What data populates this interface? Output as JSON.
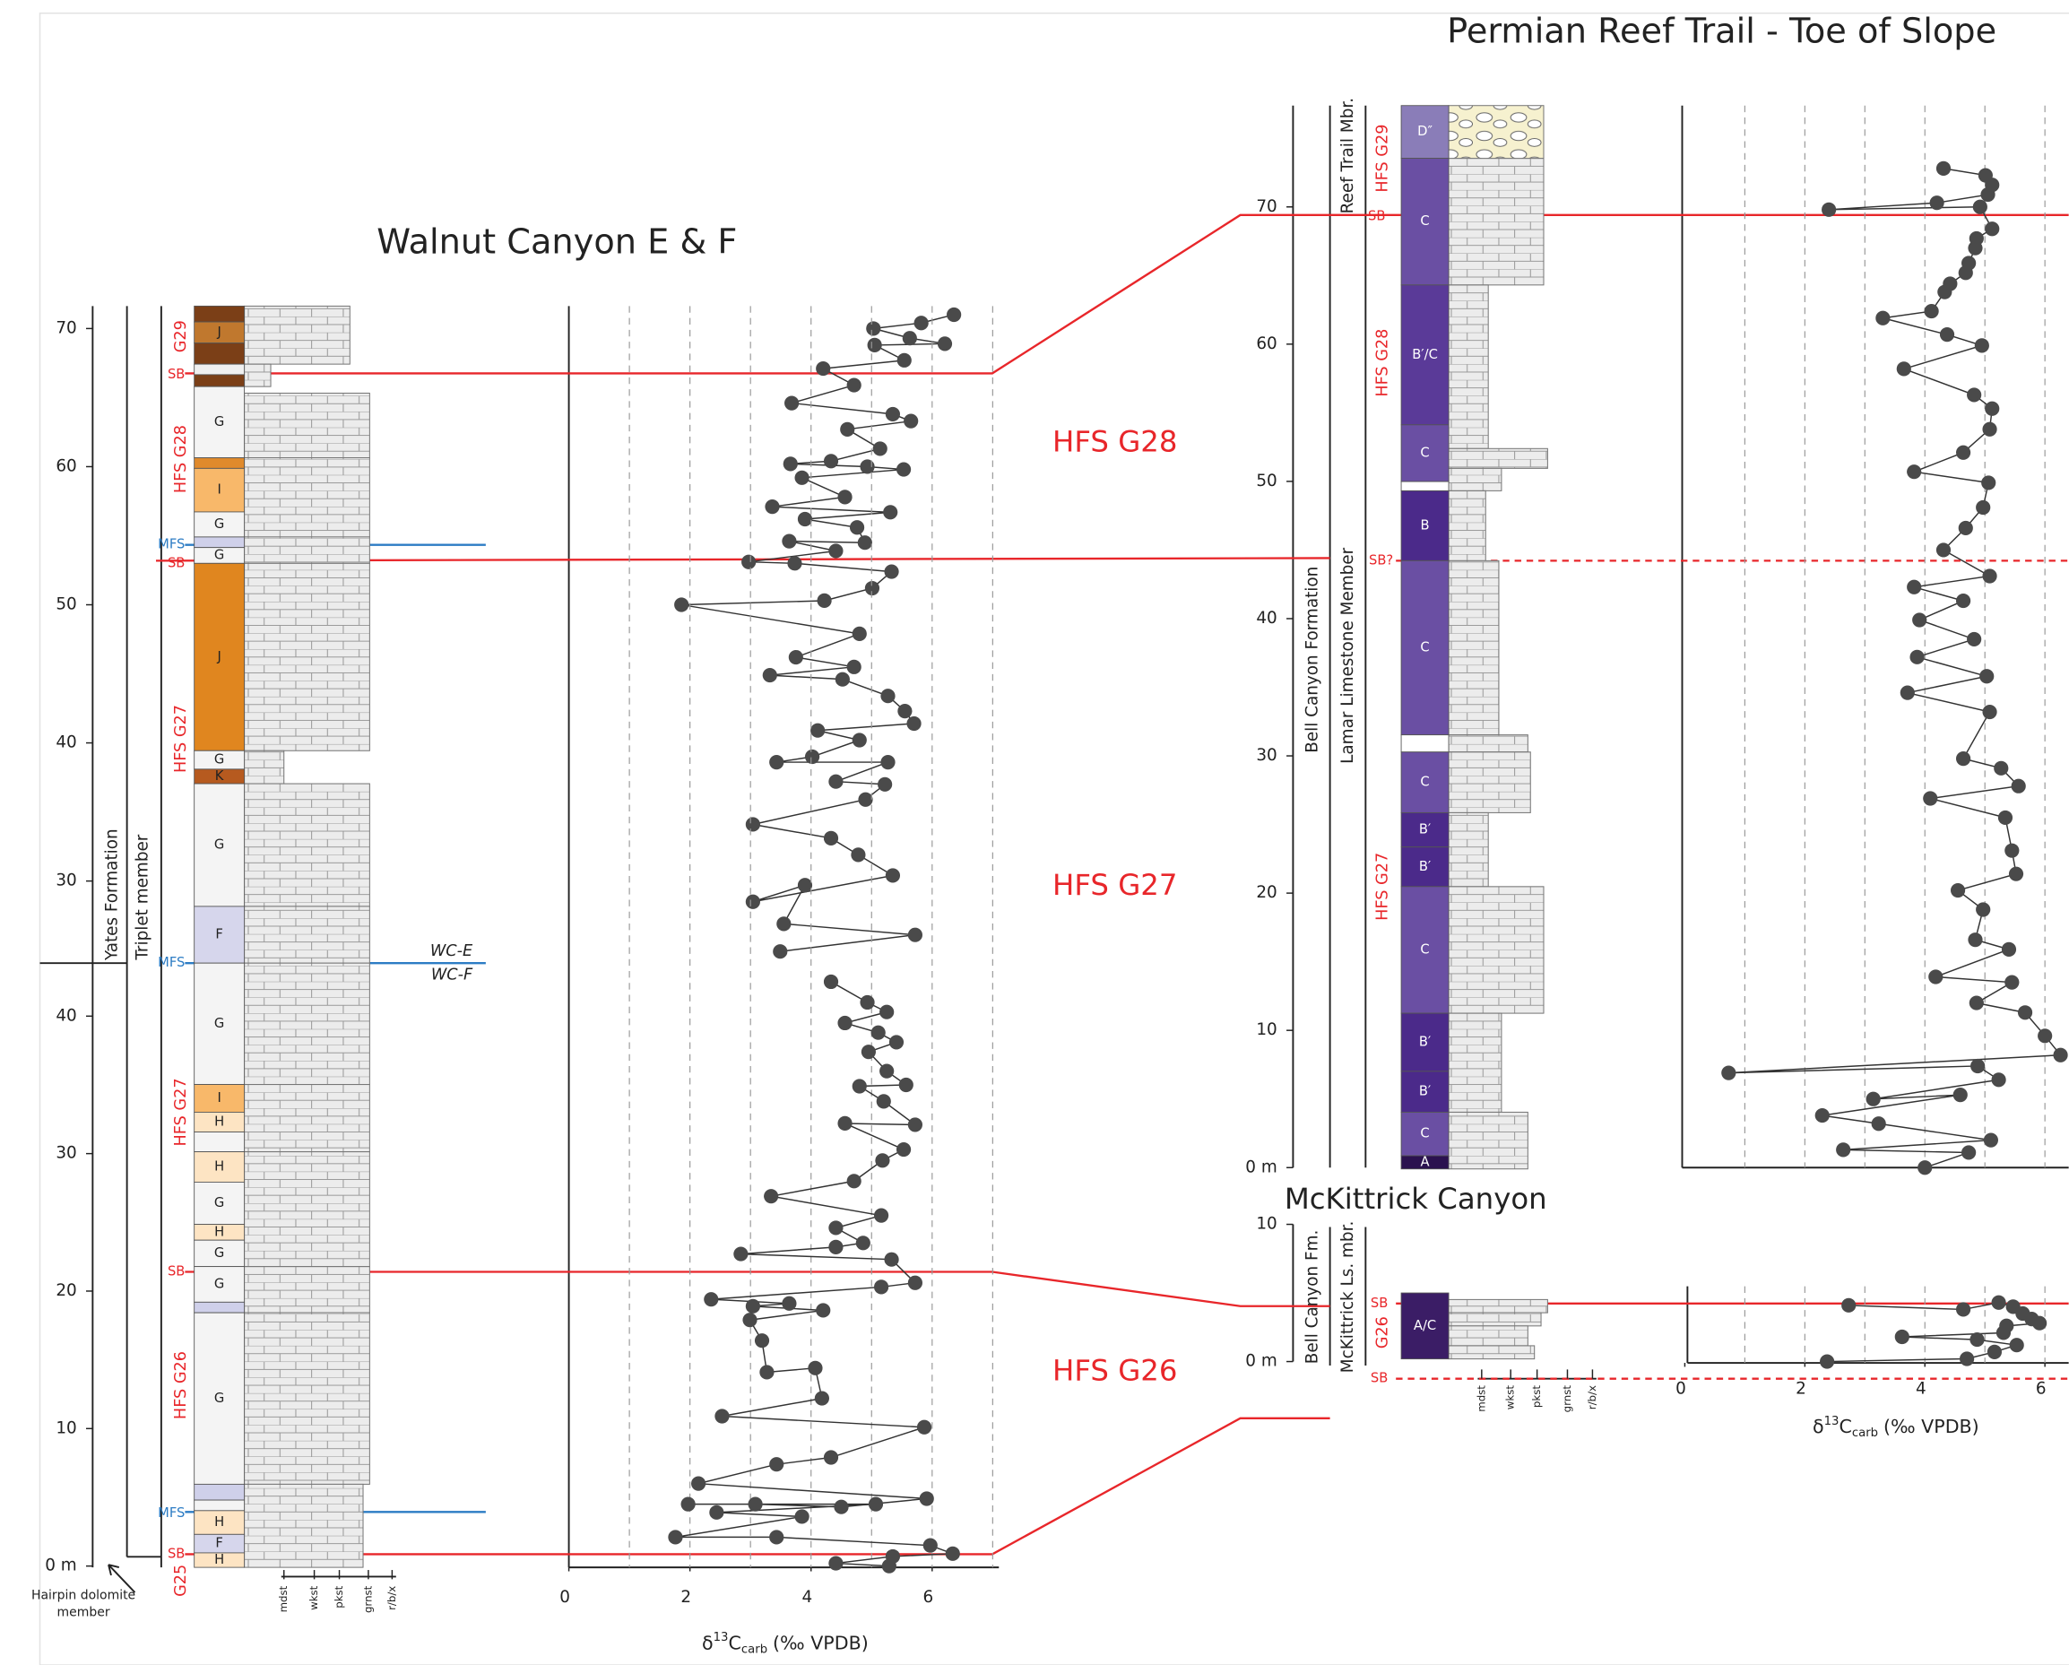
{
  "chart_data": [
    {
      "type": "scatter",
      "xlim": [
        0,
        7
      ],
      "ylim": [
        24,
        73
      ],
      "yticks": [
        30,
        40,
        50,
        60,
        70
      ],
      "connect": true,
      "series": [
        {
          "name": "WC-E",
          "color": "#4a4a4a",
          "x": [
            6.36,
            5.82,
            5.03,
            5.63,
            6.21,
            5.05,
            5.54,
            4.2,
            4.71,
            3.68,
            5.35,
            5.65,
            4.6,
            5.14,
            4.33,
            3.66,
            4.93,
            5.53,
            3.85,
            4.56,
            3.36,
            5.31,
            3.9,
            4.76,
            4.89,
            3.64,
            4.41,
            2.97,
            3.73,
            5.33,
            5.01,
            4.22,
            1.86,
            4.8,
            3.75,
            4.71,
            3.32,
            4.52,
            5.27,
            5.55,
            5.7,
            4.11,
            4.8,
            4.02,
            3.43,
            5.27,
            4.41,
            5.22,
            4.9,
            3.04,
            4.33,
            4.78,
            5.35,
            3.04,
            3.9,
            3.55,
            5.72,
            3.49
          ],
          "values": [
            71.0,
            70.4,
            70.0,
            69.3,
            68.9,
            68.8,
            67.7,
            67.1,
            65.9,
            64.6,
            63.8,
            63.3,
            62.7,
            61.3,
            60.4,
            60.2,
            60.0,
            59.8,
            59.2,
            57.8,
            57.1,
            56.7,
            56.2,
            55.6,
            54.5,
            54.6,
            53.9,
            53.1,
            53.0,
            52.4,
            51.2,
            50.3,
            50.0,
            47.9,
            46.2,
            45.5,
            44.9,
            44.6,
            43.4,
            42.3,
            41.4,
            40.9,
            40.2,
            39.0,
            38.6,
            38.6,
            37.2,
            37.0,
            35.9,
            34.1,
            33.1,
            31.9,
            30.4,
            28.5,
            29.7,
            26.9,
            26.1,
            24.9
          ]
        }
      ]
    },
    {
      "type": "scatter",
      "title": "Walnut Canyon E & F",
      "xlabel": {
        "symbol": "δ",
        "superscript": "13",
        "element": "C",
        "subscript": "carb",
        "unit": "(‰ VPDB)"
      },
      "xlim": [
        0,
        7
      ],
      "ylim": [
        0,
        44
      ],
      "xticks": [
        0,
        2,
        4,
        6
      ],
      "xgrid": [
        1,
        2,
        3,
        4,
        5,
        6,
        7
      ],
      "yticks": [
        {
          "value": 0,
          "label": "0 m"
        },
        10,
        20,
        30,
        40
      ],
      "connect": true,
      "series": [
        {
          "name": "WC-F",
          "color": "#4a4a4a",
          "x": [
            4.33,
            4.93,
            5.25,
            4.56,
            5.11,
            5.41,
            4.95,
            5.25,
            5.57,
            4.8,
            5.2,
            5.72,
            4.56,
            5.53,
            5.18,
            4.71,
            3.34,
            5.16,
            4.41,
            4.86,
            4.41,
            2.84,
            5.33,
            5.72,
            5.16,
            2.35,
            3.64,
            3.04,
            4.2,
            2.99,
            3.19,
            3.27,
            4.07,
            4.18,
            2.53,
            5.87,
            4.33,
            3.43,
            2.14,
            5.91,
            4.5,
            3.08,
            1.97,
            5.07,
            2.44,
            3.85,
            1.76,
            3.43,
            5.97,
            6.34,
            5.35,
            4.41,
            5.29
          ],
          "values": [
            42.5,
            41.0,
            40.3,
            39.5,
            38.8,
            38.1,
            37.4,
            36.0,
            35.0,
            34.9,
            33.8,
            32.1,
            32.2,
            30.3,
            29.5,
            28.0,
            26.9,
            25.5,
            24.6,
            23.5,
            23.2,
            22.7,
            22.3,
            20.6,
            20.3,
            19.4,
            19.1,
            18.9,
            18.6,
            17.9,
            16.4,
            14.1,
            14.4,
            12.2,
            10.9,
            10.1,
            7.9,
            7.4,
            6.0,
            4.9,
            4.3,
            4.5,
            4.5,
            4.5,
            3.9,
            3.6,
            2.1,
            2.1,
            1.5,
            0.9,
            0.7,
            0.2,
            0.0
          ]
        }
      ],
      "facies": [
        {
          "label": null,
          "color": "#7b3f17"
        },
        {
          "label": "J",
          "color": "#c0782e"
        },
        {
          "label": null,
          "color": "#7b3f17"
        },
        {
          "label": null,
          "color": "#f0f0f0"
        },
        {
          "label": null,
          "color": "#7b3f17"
        },
        {
          "label": "G",
          "color": "#f4f4f4"
        },
        {
          "label": null,
          "color": "#e08a2c"
        },
        {
          "label": "I",
          "color": "#f8b86a"
        },
        {
          "label": "G",
          "color": "#f4f4f4"
        },
        {
          "label": null,
          "color": "#cfd0ea"
        },
        {
          "label": "G",
          "color": "#f4f4f4"
        },
        {
          "label": "J",
          "color": "#e0861f"
        },
        {
          "label": "G",
          "color": "#f4f4f4"
        },
        {
          "label": "K",
          "color": "#b65a1f"
        },
        {
          "label": "G",
          "color": "#f4f4f4"
        },
        {
          "label": "F",
          "color": "#d6d6ec"
        },
        {
          "label": "G",
          "color": "#f4f4f4"
        },
        {
          "label": "I",
          "color": "#f8b86a"
        },
        {
          "label": "H",
          "color": "#fde4c3"
        },
        {
          "label": null,
          "color": "#f4f4f4"
        },
        {
          "label": "H",
          "color": "#fde4c3"
        },
        {
          "label": "G",
          "color": "#f4f4f4"
        },
        {
          "label": "H",
          "color": "#fde4c3"
        },
        {
          "label": "G",
          "color": "#f4f4f4"
        },
        {
          "label": "G",
          "color": "#f4f4f4"
        },
        {
          "label": null,
          "color": "#cfd0ea"
        },
        {
          "label": "G",
          "color": "#f4f4f4"
        },
        {
          "label": null,
          "color": "#cfd0ea"
        },
        {
          "label": null,
          "color": "#f4f4f4"
        },
        {
          "label": "H",
          "color": "#fde4c3"
        },
        {
          "label": "F",
          "color": "#d6d6ec"
        },
        {
          "label": "H",
          "color": "#fde4c3"
        }
      ],
      "surfaces": [
        "SB",
        "MFS",
        "SB",
        "MFS",
        "SB",
        "MFS",
        "SB"
      ],
      "sequences": [
        "G29",
        "HFS G28",
        "HFS G27",
        "HFS G27",
        "HFS G26",
        "G25"
      ],
      "units": [
        "Yates Formation",
        "Triplet member",
        "Hairpin dolomite member"
      ],
      "hfs_labels": [
        "HFS G28",
        "HFS G27",
        "HFS G26"
      ],
      "textures": [
        "mdst",
        "wkst",
        "pkst",
        "grnst",
        "r/b/x"
      ]
    },
    {
      "type": "scatter",
      "title": "Permian Reef Trail - Toe of Slope",
      "xlim": [
        0,
        6.4
      ],
      "ylim": [
        0,
        77
      ],
      "xgrid": [
        1,
        2,
        3,
        4,
        5,
        6
      ],
      "yticks": [
        {
          "value": 0,
          "label": "0 m"
        },
        10,
        20,
        30,
        40,
        50,
        60,
        70
      ],
      "connect": true,
      "series": [
        {
          "color": "#4a4a4a",
          "x": [
            4.31,
            5.01,
            5.12,
            5.05,
            4.2,
            2.4,
            4.92,
            5.12,
            4.86,
            4.84,
            4.73,
            4.68,
            4.42,
            4.33,
            4.11,
            3.3,
            4.37,
            4.95,
            3.65,
            4.82,
            5.12,
            5.08,
            4.64,
            3.82,
            5.06,
            4.97,
            4.68,
            4.31,
            5.08,
            3.82,
            4.64,
            3.91,
            4.82,
            3.87,
            5.03,
            3.71,
            5.08,
            4.64,
            5.27,
            5.56,
            4.09,
            5.34,
            5.45,
            5.52,
            4.55,
            4.97,
            4.84,
            5.4,
            4.18,
            5.45,
            4.86,
            5.67,
            6.0,
            6.26,
            0.73,
            4.88,
            5.23,
            3.14,
            4.59,
            2.29,
            3.23,
            5.1,
            2.64,
            4.73,
            4.0
          ],
          "values": [
            72.8,
            72.3,
            71.6,
            70.9,
            70.3,
            69.8,
            70.0,
            68.4,
            67.7,
            67.0,
            65.9,
            65.2,
            64.4,
            63.8,
            62.4,
            61.9,
            60.7,
            59.9,
            58.2,
            56.3,
            55.3,
            53.8,
            52.1,
            50.7,
            49.9,
            48.1,
            46.6,
            45.0,
            43.1,
            42.3,
            41.3,
            39.9,
            38.5,
            37.2,
            35.8,
            34.6,
            33.2,
            29.8,
            29.1,
            27.8,
            26.9,
            25.5,
            23.1,
            21.4,
            20.2,
            18.8,
            16.6,
            15.9,
            13.9,
            13.5,
            12.0,
            11.3,
            9.6,
            8.2,
            6.9,
            7.4,
            6.4,
            5.0,
            5.3,
            3.8,
            3.2,
            2.0,
            1.3,
            1.1,
            0.0
          ]
        }
      ],
      "facies": [
        {
          "label": "D″",
          "color": "#8a7db8"
        },
        {
          "label": "C",
          "color": "#6a4fa3"
        },
        {
          "label": "B′/C",
          "color": "#5a3a98"
        },
        {
          "label": "C",
          "color": "#6a4fa3"
        },
        {
          "label": null,
          "color": "#ffffff"
        },
        {
          "label": "B",
          "color": "#4b2a8a"
        },
        {
          "label": "C",
          "color": "#6a4fa3"
        },
        {
          "label": null,
          "color": "#ffffff"
        },
        {
          "label": "C",
          "color": "#6a4fa3"
        },
        {
          "label": "B′",
          "color": "#4b2a8a"
        },
        {
          "label": "B′",
          "color": "#4b2a8a"
        },
        {
          "label": "C",
          "color": "#6a4fa3"
        },
        {
          "label": "B′",
          "color": "#4b2a8a"
        },
        {
          "label": "B′",
          "color": "#4b2a8a"
        },
        {
          "label": "C",
          "color": "#6a4fa3"
        },
        {
          "label": "A",
          "color": "#2b124f"
        }
      ],
      "surfaces": [
        "SB",
        "SB?"
      ],
      "sequences": [
        "HFS G29",
        "HFS G28",
        "HFS G27"
      ],
      "units": [
        "Reef Trail Mbr.",
        "Bell Canyon Formation",
        "Lamar Limestone Member"
      ]
    },
    {
      "type": "scatter",
      "title": "McKittrick Canyon",
      "xlabel": {
        "symbol": "δ",
        "superscript": "13",
        "element": "C",
        "subscript": "carb",
        "unit": "(‰ VPDB)"
      },
      "xlim": [
        0,
        6.4
      ],
      "ylim": [
        0,
        10
      ],
      "xticks": [
        0,
        2,
        4,
        6
      ],
      "xgrid": [
        1,
        2,
        3,
        4,
        5,
        6
      ],
      "yticks": [
        {
          "value": 0,
          "label": "0 m"
        },
        10
      ],
      "connect": true,
      "series": [
        {
          "color": "#4a4a4a",
          "x": [
            2.73,
            4.64,
            5.23,
            5.47,
            5.63,
            5.78,
            5.91,
            5.36,
            5.31,
            3.62,
            4.87,
            5.53,
            5.16,
            4.7,
            2.37
          ],
          "values": [
            4.1,
            3.8,
            4.3,
            4.0,
            3.5,
            3.1,
            2.8,
            2.6,
            2.1,
            1.8,
            1.6,
            1.2,
            0.7,
            0.2,
            0.0
          ]
        }
      ],
      "facies": [
        {
          "label": "A/C",
          "color": "#3b1d66"
        }
      ],
      "surfaces": [
        "SB",
        "SB"
      ],
      "sequences": [
        "G26"
      ],
      "units": [
        "Bell Canyon Fm.",
        "McKittrick Ls. mbr."
      ],
      "textures": [
        "mdst",
        "wkst",
        "pkst",
        "grnst",
        "r/b/x"
      ]
    }
  ]
}
